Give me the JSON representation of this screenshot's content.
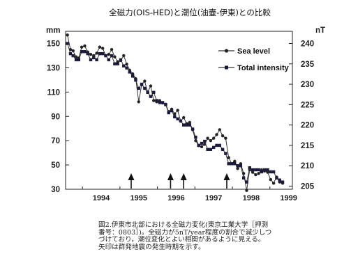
{
  "chart_data": {
    "type": "line",
    "title": "全磁力(OIS-HED)と潮位(油壷-伊東)との比較",
    "y_left_unit": "mm",
    "y_right_unit": "nT",
    "x_tick_labels": [
      "1994",
      "1995",
      "1996",
      "1997",
      "1998",
      "1999"
    ],
    "x_range": [
      1993.55,
      1999.6
    ],
    "y_left_ticks": [
      "150",
      "130",
      "110",
      "90",
      "70",
      "50",
      "30"
    ],
    "y_left_range": [
      30,
      160
    ],
    "y_right_ticks": [
      "240",
      "235",
      "230",
      "225",
      "220",
      "215",
      "210",
      "205"
    ],
    "y_right_range": [
      205,
      242
    ],
    "legend_position": "top-right",
    "series": [
      {
        "name": "Sea level",
        "axis": "left",
        "x": [
          1993.6,
          1993.68,
          1993.75,
          1993.83,
          1993.9,
          1993.98,
          1994.06,
          1994.14,
          1994.22,
          1994.3,
          1994.38,
          1994.46,
          1994.54,
          1994.62,
          1994.7,
          1994.78,
          1994.86,
          1994.94,
          1995.02,
          1995.1,
          1995.18,
          1995.26,
          1995.34,
          1995.42,
          1995.5,
          1995.58,
          1995.66,
          1995.74,
          1995.82,
          1995.9,
          1995.98,
          1996.06,
          1996.14,
          1996.22,
          1996.3,
          1996.38,
          1996.46,
          1996.54,
          1996.62,
          1996.7,
          1996.78,
          1996.86,
          1996.94,
          1997.02,
          1997.1,
          1997.18,
          1997.26,
          1997.34,
          1997.42,
          1997.5,
          1997.58,
          1997.66,
          1997.74,
          1997.82,
          1997.9,
          1997.98,
          1998.06,
          1998.14,
          1998.22,
          1998.3,
          1998.38,
          1998.46,
          1998.54,
          1998.62,
          1998.7,
          1998.78,
          1998.86,
          1998.94,
          1999.02,
          1999.1,
          1999.18,
          1999.26,
          1999.34
        ],
        "values": [
          157,
          145,
          144,
          139,
          138,
          147,
          148,
          143,
          141,
          140,
          142,
          147,
          146,
          140,
          141,
          145,
          139,
          135,
          136,
          140,
          133,
          128,
          125,
          121,
          102,
          116,
          119,
          110,
          115,
          103,
          102,
          103,
          101,
          100,
          94,
          96,
          92,
          95,
          86,
          89,
          84,
          85,
          79,
          70,
          66,
          65,
          67,
          72,
          70,
          72,
          75,
          79,
          74,
          72,
          56,
          51,
          53,
          47,
          51,
          43,
          29,
          46,
          44,
          42,
          43,
          46,
          45,
          44,
          38,
          35,
          40,
          36,
          35
        ]
      },
      {
        "name": "Total intensity",
        "axis": "right",
        "x": [
          1993.6,
          1993.68,
          1993.75,
          1993.83,
          1993.9,
          1993.98,
          1994.06,
          1994.14,
          1994.22,
          1994.3,
          1994.38,
          1994.46,
          1994.54,
          1994.62,
          1994.7,
          1994.78,
          1994.86,
          1994.94,
          1995.02,
          1995.1,
          1995.18,
          1995.26,
          1995.34,
          1995.42,
          1995.5,
          1995.58,
          1995.66,
          1995.74,
          1995.82,
          1995.9,
          1995.98,
          1996.06,
          1996.14,
          1996.22,
          1996.3,
          1996.38,
          1996.46,
          1996.54,
          1996.62,
          1996.7,
          1996.78,
          1996.86,
          1996.94,
          1997.02,
          1997.1,
          1997.18,
          1997.26,
          1997.34,
          1997.42,
          1997.5,
          1997.58,
          1997.66,
          1997.74,
          1997.82,
          1997.9,
          1997.98,
          1998.06,
          1998.14,
          1998.22,
          1998.3,
          1998.38,
          1998.46,
          1998.54,
          1998.62,
          1998.7,
          1998.78,
          1998.86,
          1998.94,
          1999.02,
          1999.1,
          1999.18,
          1999.26,
          1999.34
        ],
        "values": [
          240,
          237.5,
          237,
          236,
          236,
          238,
          238,
          237.5,
          236,
          236.5,
          236,
          237.5,
          237.5,
          237,
          236,
          237,
          235,
          235,
          236,
          234.5,
          234,
          233,
          232,
          231,
          229,
          230,
          229,
          228,
          227,
          228,
          226,
          225.5,
          225.5,
          225,
          223,
          223.5,
          222,
          221.5,
          221,
          220,
          220,
          220,
          219,
          217,
          215,
          215.5,
          216,
          214,
          214,
          214.5,
          215,
          215,
          214,
          213,
          210.5,
          210.5,
          210.5,
          210,
          210,
          207,
          206,
          209.5,
          209,
          209,
          209,
          208.5,
          209,
          209,
          208.5,
          208.5,
          207,
          206.5,
          206
        ]
      }
    ],
    "event_arrows_x": [
      1995.3,
      1996.35,
      1996.7,
      1997.85
    ],
    "caption_lines": [
      "図2.伊東市北部における全磁力変化(東京工業大学［押測",
      "番号：0803］)。全磁力が5nT/year程度の割合で減少しつ",
      "づけており，潮位変化とよい相関があるように見える。",
      "矢印は群発地震の発生時期を示す。"
    ]
  }
}
